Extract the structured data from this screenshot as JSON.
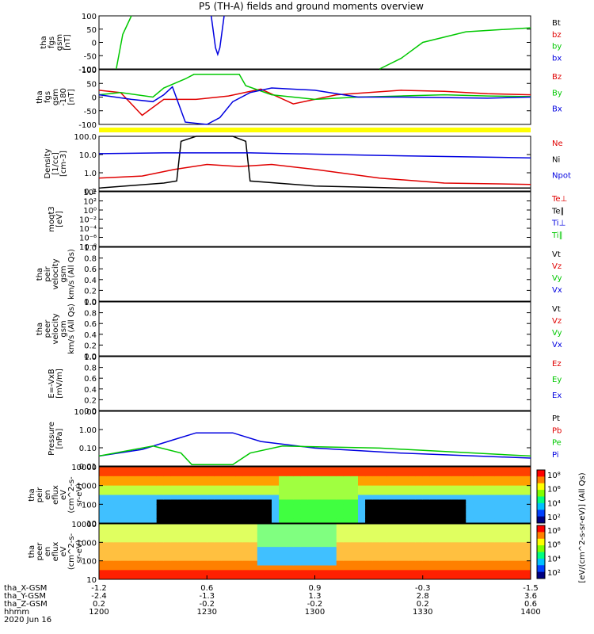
{
  "title": "P5 (TH-A) fields and ground moments overview",
  "colors": {
    "black": "#000000",
    "red": "#e00000",
    "green": "#00c800",
    "blue": "#0000e0",
    "yellow": "#ffff00"
  },
  "panels": [
    {
      "id": "fgs",
      "ylabel": [
        "tha",
        "fgs",
        "gsm",
        "[nT]"
      ],
      "ticks": [
        "100",
        "50",
        "0",
        "-50",
        "-100"
      ],
      "legend": [
        {
          "text": "Bt",
          "color": "black"
        },
        {
          "text": "bz",
          "color": "red"
        },
        {
          "text": "by",
          "color": "green"
        },
        {
          "text": "bx",
          "color": "blue"
        }
      ]
    },
    {
      "id": "fgs_clip",
      "ylabel": [
        "tha",
        "fgs",
        "gsm",
        "-180",
        "[nT]"
      ],
      "ticks": [
        "100",
        "50",
        "0",
        "-50",
        "-100"
      ],
      "legend": [
        {
          "text": "Bz",
          "color": "red"
        },
        {
          "text": "By",
          "color": "green"
        },
        {
          "text": "Bx",
          "color": "blue"
        }
      ]
    },
    {
      "id": "density",
      "ylabel": [
        "Density",
        "[1/cc]",
        "[cm-3]"
      ],
      "ticks": [
        "100.0",
        "10.0",
        "1.0",
        "0.1"
      ],
      "legend": [
        {
          "text": "Ne",
          "color": "red"
        },
        {
          "text": "Ni",
          "color": "black"
        },
        {
          "text": "Npot",
          "color": "blue"
        }
      ]
    },
    {
      "id": "temp",
      "ylabel": [
        "moqt3",
        "[eV]"
      ],
      "ticks": [
        "10⁴",
        "10²",
        "10⁰",
        "10⁻²",
        "10⁻⁴",
        "10⁻⁶",
        "10⁻⁸"
      ],
      "legend": [
        {
          "text": "Te⊥",
          "color": "red"
        },
        {
          "text": "Te∥",
          "color": "black"
        },
        {
          "text": "Ti⊥",
          "color": "blue"
        },
        {
          "text": "Ti∥",
          "color": "green"
        }
      ]
    },
    {
      "id": "peir_vel",
      "ylabel": [
        "tha",
        "peir",
        "velocity",
        "gsm",
        "km/s (All Qs)"
      ],
      "ticks": [
        "1.0",
        "0.8",
        "0.6",
        "0.4",
        "0.2",
        "0.0"
      ],
      "legend": [
        {
          "text": "Vt",
          "color": "black"
        },
        {
          "text": "Vz",
          "color": "red"
        },
        {
          "text": "Vy",
          "color": "green"
        },
        {
          "text": "Vx",
          "color": "blue"
        }
      ]
    },
    {
      "id": "peer_vel",
      "ylabel": [
        "tha",
        "peer",
        "velocity",
        "gsm",
        "km/s (All Qs)"
      ],
      "ticks": [
        "1.0",
        "0.8",
        "0.6",
        "0.4",
        "0.2",
        "0.0"
      ],
      "legend": [
        {
          "text": "Vt",
          "color": "black"
        },
        {
          "text": "Vz",
          "color": "red"
        },
        {
          "text": "Vy",
          "color": "green"
        },
        {
          "text": "Vx",
          "color": "blue"
        }
      ]
    },
    {
      "id": "efield",
      "ylabel": [
        "E=-VxB",
        "[mV/m]"
      ],
      "ticks": [
        "1.0",
        "0.8",
        "0.6",
        "0.4",
        "0.2",
        "0.0"
      ],
      "legend": [
        {
          "text": "Ez",
          "color": "red"
        },
        {
          "text": "Ey",
          "color": "green"
        },
        {
          "text": "Ex",
          "color": "blue"
        }
      ]
    },
    {
      "id": "pressure",
      "ylabel": [
        "Pressure",
        "[nPa]"
      ],
      "ticks": [
        "10.00",
        "1.00",
        "0.10",
        "0.01"
      ],
      "legend": [
        {
          "text": "Pt",
          "color": "black"
        },
        {
          "text": "Pb",
          "color": "red"
        },
        {
          "text": "Pe",
          "color": "green"
        },
        {
          "text": "Pi",
          "color": "blue"
        }
      ]
    },
    {
      "id": "peir_en",
      "ylabel": [
        "tha",
        "peir",
        "en",
        "eflux",
        "eV",
        "(cm^2-s-",
        "sr-eV)"
      ],
      "ticks": [
        "10000",
        "1000",
        "100",
        "10"
      ],
      "legend": []
    },
    {
      "id": "peer_en",
      "ylabel": [
        "tha",
        "peer",
        "en",
        "eflux",
        "eV",
        "(cm^2-s-",
        "sr-eV)"
      ],
      "ticks": [
        "10000",
        "1000",
        "100",
        "10"
      ],
      "legend": []
    }
  ],
  "colorbar": {
    "label": "[eV/(cm^2-s-sr-eV)] (All Qs)",
    "ticks_top": [
      "10⁸",
      "10⁶",
      "10⁴",
      "10²"
    ],
    "ticks_bottom": [
      "10⁸",
      "10⁶",
      "10⁴",
      "10²"
    ]
  },
  "xaxis": {
    "rows": [
      {
        "name": "tha_X-GSM",
        "values": [
          "-1.2",
          "0.6",
          "0.9",
          "-0.3",
          "-1.5"
        ]
      },
      {
        "name": "tha_Y-GSM",
        "values": [
          "-2.4",
          "-1.3",
          "1.3",
          "2.8",
          "3.6"
        ]
      },
      {
        "name": "tha_Z-GSM",
        "values": [
          "0.2",
          "-0.2",
          "-0.2",
          "0.2",
          "0.6"
        ]
      },
      {
        "name": "hhmm",
        "values": [
          "1200",
          "1230",
          "1300",
          "1330",
          "1400"
        ]
      }
    ],
    "date": "2020 Jun 16"
  },
  "chart_data": {
    "type": "line",
    "title": "P5 (TH-A) fields and ground moments overview",
    "x_time_labels": [
      "1200",
      "1230",
      "1300",
      "1330",
      "1400"
    ],
    "date": "2020 Jun 16",
    "panels": [
      {
        "id": "fgs",
        "ylim": [
          -100,
          100
        ],
        "series": [
          {
            "name": "by",
            "points": [
              [
                1208,
                -100
              ],
              [
                1211,
                30
              ],
              [
                1215,
                100
              ]
            ]
          },
          {
            "name": "bx",
            "points": [
              [
                1252,
                100
              ],
              [
                1254,
                -20
              ],
              [
                1255,
                -45
              ],
              [
                1256,
                -20
              ],
              [
                1258,
                100
              ]
            ]
          },
          {
            "name": "by",
            "points": [
              [
                1330,
                -100
              ],
              [
                1340,
                -60
              ],
              [
                1350,
                0
              ],
              [
                1370,
                40
              ],
              [
                1400,
                55
              ]
            ]
          }
        ]
      },
      {
        "id": "fgs_clip",
        "ylim": [
          -120,
          120
        ],
        "series": [
          {
            "name": "Bz",
            "points": [
              [
                1200,
                30
              ],
              [
                1210,
                20
              ],
              [
                1220,
                -80
              ],
              [
                1230,
                -10
              ],
              [
                1245,
                -10
              ],
              [
                1260,
                5
              ],
              [
                1275,
                35
              ],
              [
                1290,
                -30
              ],
              [
                1310,
                10
              ],
              [
                1340,
                30
              ],
              [
                1360,
                25
              ],
              [
                1380,
                15
              ],
              [
                1400,
                10
              ]
            ]
          },
          {
            "name": "By",
            "points": [
              [
                1200,
                10
              ],
              [
                1210,
                20
              ],
              [
                1225,
                0
              ],
              [
                1230,
                40
              ],
              [
                1240,
                80
              ],
              [
                1244,
                100
              ],
              [
                1265,
                100
              ],
              [
                1268,
                50
              ],
              [
                1280,
                10
              ],
              [
                1300,
                -10
              ],
              [
                1320,
                0
              ],
              [
                1340,
                5
              ],
              [
                1360,
                10
              ],
              [
                1380,
                5
              ],
              [
                1400,
                2
              ]
            ]
          },
          {
            "name": "Bx",
            "points": [
              [
                1200,
                10
              ],
              [
                1215,
                -10
              ],
              [
                1225,
                -20
              ],
              [
                1230,
                10
              ],
              [
                1234,
                45
              ],
              [
                1240,
                -110
              ],
              [
                1250,
                -120
              ],
              [
                1256,
                -90
              ],
              [
                1262,
                -20
              ],
              [
                1270,
                20
              ],
              [
                1280,
                40
              ],
              [
                1300,
                30
              ],
              [
                1320,
                0
              ],
              [
                1340,
                0
              ],
              [
                1380,
                -5
              ],
              [
                1400,
                0
              ]
            ]
          }
        ]
      },
      {
        "id": "density",
        "ylim": [
          0.1,
          200
        ],
        "log": true,
        "series": [
          {
            "name": "Ne",
            "points": [
              [
                1200,
                0.6
              ],
              [
                1220,
                0.8
              ],
              [
                1235,
                2
              ],
              [
                1250,
                4
              ],
              [
                1265,
                3
              ],
              [
                1280,
                4
              ],
              [
                1300,
                2
              ],
              [
                1330,
                0.6
              ],
              [
                1360,
                0.3
              ],
              [
                1400,
                0.25
              ]
            ]
          },
          {
            "name": "Ni",
            "points": [
              [
                1200,
                0.15
              ],
              [
                1230,
                0.3
              ],
              [
                1236,
                0.4
              ],
              [
                1238,
                100
              ],
              [
                1245,
                200
              ],
              [
                1262,
                200
              ],
              [
                1268,
                100
              ],
              [
                1270,
                0.4
              ],
              [
                1300,
                0.2
              ],
              [
                1340,
                0.15
              ],
              [
                1400,
                0.15
              ]
            ]
          },
          {
            "name": "Npot",
            "points": [
              [
                1200,
                18
              ],
              [
                1230,
                20
              ],
              [
                1270,
                20
              ],
              [
                1330,
                14
              ],
              [
                1400,
                10
              ]
            ]
          }
        ]
      },
      {
        "id": "pressure",
        "ylim": [
          0.005,
          10
        ],
        "log": true,
        "series": [
          {
            "name": "Pi",
            "points": [
              [
                1200,
                0.02
              ],
              [
                1220,
                0.05
              ],
              [
                1235,
                0.2
              ],
              [
                1245,
                0.5
              ],
              [
                1262,
                0.5
              ],
              [
                1275,
                0.15
              ],
              [
                1300,
                0.06
              ],
              [
                1340,
                0.03
              ],
              [
                1400,
                0.015
              ]
            ]
          },
          {
            "name": "Pe",
            "points": [
              [
                1200,
                0.02
              ],
              [
                1225,
                0.08
              ],
              [
                1238,
                0.03
              ],
              [
                1243,
                0.006
              ],
              [
                1262,
                0.006
              ],
              [
                1270,
                0.03
              ],
              [
                1285,
                0.08
              ],
              [
                1330,
                0.06
              ],
              [
                1400,
                0.02
              ]
            ]
          }
        ]
      }
    ]
  }
}
